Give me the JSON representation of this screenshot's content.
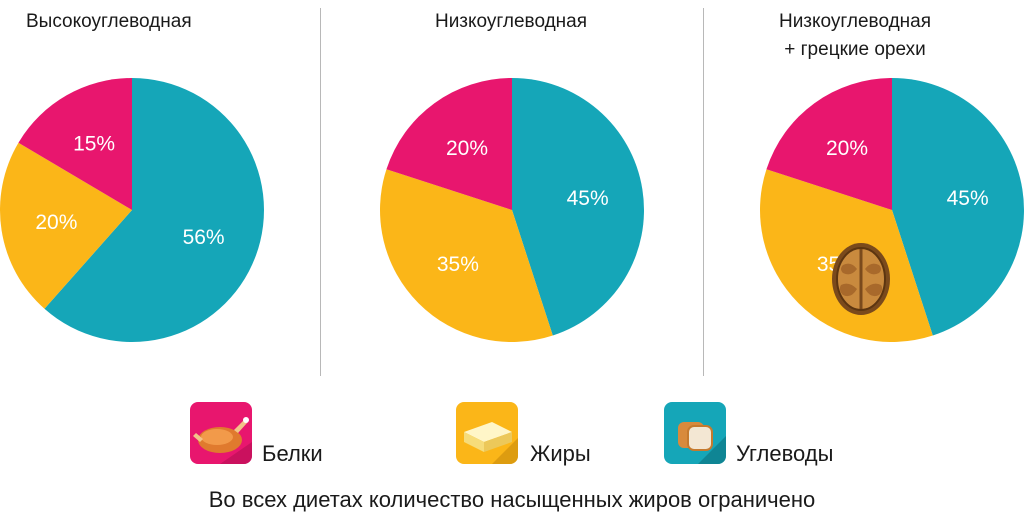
{
  "chart_data": [
    {
      "type": "pie",
      "title": "Высокоуглеводная",
      "categories": [
        "Белки",
        "Жиры",
        "Углеводы"
      ],
      "values": [
        15,
        20,
        56
      ],
      "labels": [
        "15%",
        "20%",
        "56%"
      ],
      "colors": [
        "#e8166e",
        "#fbb618",
        "#15a6b8"
      ]
    },
    {
      "type": "pie",
      "title": "Низкоуглеводная",
      "categories": [
        "Белки",
        "Жиры",
        "Углеводы"
      ],
      "values": [
        20,
        35,
        45
      ],
      "labels": [
        "20%",
        "35%",
        "45%"
      ],
      "colors": [
        "#e8166e",
        "#fbb618",
        "#15a6b8"
      ]
    },
    {
      "type": "pie",
      "title": "Низкоуглеводная\n+ грецкие орехи",
      "title_line1": "Низкоуглеводная",
      "title_line2": "+ грецкие орехи",
      "categories": [
        "Белки",
        "Жиры",
        "Углеводы"
      ],
      "values": [
        20,
        35,
        45
      ],
      "labels": [
        "20%",
        "35%",
        "45%"
      ],
      "colors": [
        "#e8166e",
        "#fbb618",
        "#15a6b8"
      ],
      "annotation_icon": "walnut-icon"
    }
  ],
  "legend": [
    {
      "label": "Белки",
      "icon": "roast-chicken-icon",
      "color": "#e8166e"
    },
    {
      "label": "Жиры",
      "icon": "butter-icon",
      "color": "#fbb618"
    },
    {
      "label": "Углеводы",
      "icon": "bread-icon",
      "color": "#15a6b8"
    }
  ],
  "footnote": "Во всех диетах количество насыщенных жиров ограничено"
}
